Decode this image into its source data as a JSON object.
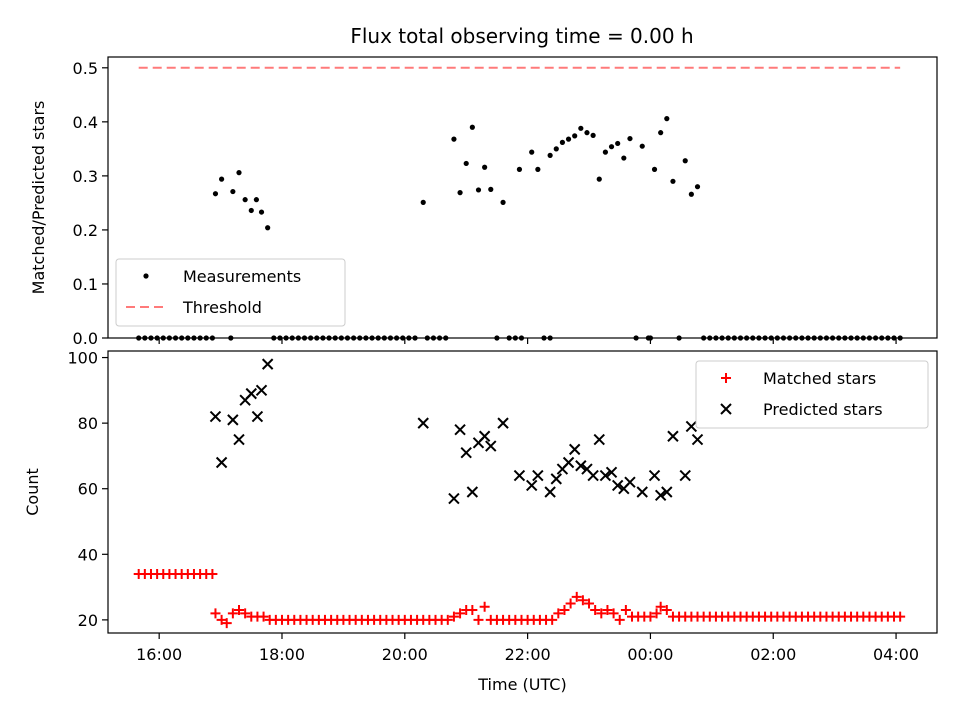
{
  "chart_data": [
    {
      "type": "scatter",
      "title": "Flux total observing time = 0.00 h",
      "ylabel": "Matched/Predicted stars",
      "xlabel": "",
      "xlim": [
        "15:10",
        "04:40"
      ],
      "ylim": [
        0,
        0.52
      ],
      "x_tick_labels": [],
      "y_ticks": [
        0.0,
        0.1,
        0.2,
        0.3,
        0.4,
        0.5
      ],
      "y_tick_labels": [
        "0.0",
        "0.1",
        "0.2",
        "0.3",
        "0.4",
        "0.5"
      ],
      "legend": "lower-left",
      "grid": false,
      "series": [
        {
          "name": "Measurements",
          "marker": "dot",
          "color": "#000000",
          "points": [
            [
              "16:55",
              0.267
            ],
            [
              "17:01",
              0.294
            ],
            [
              "17:12",
              0.271
            ],
            [
              "17:18",
              0.306
            ],
            [
              "17:24",
              0.256
            ],
            [
              "17:30",
              0.236
            ],
            [
              "17:35",
              0.256
            ],
            [
              "17:40",
              0.233
            ],
            [
              "17:46",
              0.204
            ],
            [
              "20:18",
              0.251
            ],
            [
              "20:48",
              0.368
            ],
            [
              "20:54",
              0.269
            ],
            [
              "21:00",
              0.323
            ],
            [
              "21:06",
              0.39
            ],
            [
              "21:12",
              0.274
            ],
            [
              "21:18",
              0.316
            ],
            [
              "21:24",
              0.275
            ],
            [
              "21:36",
              0.251
            ],
            [
              "21:52",
              0.312
            ],
            [
              "22:04",
              0.344
            ],
            [
              "22:10",
              0.312
            ],
            [
              "22:22",
              0.338
            ],
            [
              "22:28",
              0.35
            ],
            [
              "22:34",
              0.362
            ],
            [
              "22:40",
              0.368
            ],
            [
              "22:46",
              0.374
            ],
            [
              "22:52",
              0.388
            ],
            [
              "22:58",
              0.38
            ],
            [
              "23:04",
              0.375
            ],
            [
              "23:10",
              0.294
            ],
            [
              "23:16",
              0.344
            ],
            [
              "23:22",
              0.354
            ],
            [
              "23:28",
              0.36
            ],
            [
              "23:34",
              0.333
            ],
            [
              "23:40",
              0.369
            ],
            [
              "23:52",
              0.355
            ],
            [
              "00:04",
              0.312
            ],
            [
              "00:10",
              0.38
            ],
            [
              "00:16",
              0.406
            ],
            [
              "00:22",
              0.29
            ],
            [
              "00:34",
              0.328
            ],
            [
              "00:40",
              0.266
            ],
            [
              "00:46",
              0.28
            ]
          ],
          "zero_points": [
            "15:40",
            "15:46",
            "15:52",
            "15:58",
            "16:04",
            "16:10",
            "16:16",
            "16:22",
            "16:28",
            "16:34",
            "16:40",
            "16:46",
            "16:52",
            "17:10",
            "17:52",
            "17:58",
            "18:04",
            "18:10",
            "18:16",
            "18:22",
            "18:28",
            "18:34",
            "18:40",
            "18:46",
            "18:52",
            "18:58",
            "19:04",
            "19:10",
            "19:16",
            "19:22",
            "19:28",
            "19:34",
            "19:40",
            "19:46",
            "19:52",
            "19:58",
            "20:04",
            "20:10",
            "20:22",
            "20:28",
            "20:34",
            "20:40",
            "21:30",
            "21:42",
            "21:48",
            "21:54",
            "22:16",
            "22:22",
            "23:46",
            "23:58",
            "00:00",
            "00:28",
            "00:52",
            "00:58",
            "01:04",
            "01:10",
            "01:16",
            "01:22",
            "01:28",
            "01:34",
            "01:40",
            "01:46",
            "01:52",
            "01:58",
            "02:04",
            "02:10",
            "02:16",
            "02:22",
            "02:28",
            "02:34",
            "02:40",
            "02:46",
            "02:52",
            "02:58",
            "03:04",
            "03:10",
            "03:16",
            "03:22",
            "03:28",
            "03:34",
            "03:40",
            "03:46",
            "03:52",
            "03:58",
            "04:04"
          ]
        },
        {
          "name": "Threshold",
          "line_style": "dashed",
          "color": "#ff7a7a",
          "points": [
            [
              "15:40",
              0.5
            ],
            [
              "04:04",
              0.5
            ]
          ]
        }
      ]
    },
    {
      "type": "scatter",
      "title": "",
      "ylabel": "Count",
      "xlabel": "Time (UTC)",
      "xlim": [
        "15:10",
        "04:40"
      ],
      "ylim": [
        16,
        102
      ],
      "x_tick_labels": [
        "16:00",
        "18:00",
        "20:00",
        "22:00",
        "00:00",
        "02:00",
        "04:00"
      ],
      "y_ticks": [
        20,
        40,
        60,
        80,
        100
      ],
      "y_tick_labels": [
        "20",
        "40",
        "60",
        "80",
        "100"
      ],
      "legend": "top-right",
      "grid": false,
      "series": [
        {
          "name": "Matched stars",
          "marker": "plus",
          "color": "#ff0000",
          "points": [
            [
              "15:40",
              34
            ],
            [
              "15:46",
              34
            ],
            [
              "15:52",
              34
            ],
            [
              "15:58",
              34
            ],
            [
              "16:04",
              34
            ],
            [
              "16:10",
              34
            ],
            [
              "16:16",
              34
            ],
            [
              "16:22",
              34
            ],
            [
              "16:28",
              34
            ],
            [
              "16:34",
              34
            ],
            [
              "16:40",
              34
            ],
            [
              "16:46",
              34
            ],
            [
              "16:52",
              34
            ],
            [
              "16:55",
              22
            ],
            [
              "17:01",
              20
            ],
            [
              "17:06",
              19
            ],
            [
              "17:12",
              22
            ],
            [
              "17:18",
              23
            ],
            [
              "17:24",
              22
            ],
            [
              "17:30",
              21
            ],
            [
              "17:36",
              21
            ],
            [
              "17:42",
              21
            ],
            [
              "17:48",
              20
            ],
            [
              "17:54",
              20
            ],
            [
              "18:00",
              20
            ],
            [
              "18:06",
              20
            ],
            [
              "18:12",
              20
            ],
            [
              "18:18",
              20
            ],
            [
              "18:24",
              20
            ],
            [
              "18:30",
              20
            ],
            [
              "18:36",
              20
            ],
            [
              "18:42",
              20
            ],
            [
              "18:48",
              20
            ],
            [
              "18:54",
              20
            ],
            [
              "19:00",
              20
            ],
            [
              "19:06",
              20
            ],
            [
              "19:12",
              20
            ],
            [
              "19:18",
              20
            ],
            [
              "19:24",
              20
            ],
            [
              "19:30",
              20
            ],
            [
              "19:36",
              20
            ],
            [
              "19:42",
              20
            ],
            [
              "19:48",
              20
            ],
            [
              "19:54",
              20
            ],
            [
              "20:00",
              20
            ],
            [
              "20:06",
              20
            ],
            [
              "20:12",
              20
            ],
            [
              "20:18",
              20
            ],
            [
              "20:24",
              20
            ],
            [
              "20:30",
              20
            ],
            [
              "20:36",
              20
            ],
            [
              "20:42",
              20
            ],
            [
              "20:48",
              21
            ],
            [
              "20:54",
              22
            ],
            [
              "21:00",
              23
            ],
            [
              "21:06",
              23
            ],
            [
              "21:12",
              20
            ],
            [
              "21:18",
              24
            ],
            [
              "21:24",
              20
            ],
            [
              "21:30",
              20
            ],
            [
              "21:36",
              20
            ],
            [
              "21:42",
              20
            ],
            [
              "21:48",
              20
            ],
            [
              "21:54",
              20
            ],
            [
              "22:00",
              20
            ],
            [
              "22:06",
              20
            ],
            [
              "22:12",
              20
            ],
            [
              "22:18",
              20
            ],
            [
              "22:24",
              20
            ],
            [
              "22:30",
              22
            ],
            [
              "22:36",
              23
            ],
            [
              "22:42",
              25
            ],
            [
              "22:48",
              27
            ],
            [
              "22:54",
              26
            ],
            [
              "23:00",
              25
            ],
            [
              "23:06",
              23
            ],
            [
              "23:12",
              22
            ],
            [
              "23:18",
              23
            ],
            [
              "23:24",
              22
            ],
            [
              "23:30",
              20
            ],
            [
              "23:36",
              23
            ],
            [
              "23:42",
              21
            ],
            [
              "23:48",
              21
            ],
            [
              "23:54",
              21
            ],
            [
              "00:00",
              21
            ],
            [
              "00:06",
              22
            ],
            [
              "00:10",
              24
            ],
            [
              "00:16",
              23
            ],
            [
              "00:22",
              21
            ],
            [
              "00:28",
              21
            ],
            [
              "00:34",
              21
            ],
            [
              "00:40",
              21
            ],
            [
              "00:46",
              21
            ],
            [
              "00:52",
              21
            ],
            [
              "00:58",
              21
            ],
            [
              "01:04",
              21
            ],
            [
              "01:10",
              21
            ],
            [
              "01:16",
              21
            ],
            [
              "01:22",
              21
            ],
            [
              "01:28",
              21
            ],
            [
              "01:34",
              21
            ],
            [
              "01:40",
              21
            ],
            [
              "01:46",
              21
            ],
            [
              "01:52",
              21
            ],
            [
              "01:58",
              21
            ],
            [
              "02:04",
              21
            ],
            [
              "02:10",
              21
            ],
            [
              "02:16",
              21
            ],
            [
              "02:22",
              21
            ],
            [
              "02:28",
              21
            ],
            [
              "02:34",
              21
            ],
            [
              "02:40",
              21
            ],
            [
              "02:46",
              21
            ],
            [
              "02:52",
              21
            ],
            [
              "02:58",
              21
            ],
            [
              "03:04",
              21
            ],
            [
              "03:10",
              21
            ],
            [
              "03:16",
              21
            ],
            [
              "03:22",
              21
            ],
            [
              "03:28",
              21
            ],
            [
              "03:34",
              21
            ],
            [
              "03:40",
              21
            ],
            [
              "03:46",
              21
            ],
            [
              "03:52",
              21
            ],
            [
              "03:58",
              21
            ],
            [
              "04:04",
              21
            ]
          ]
        },
        {
          "name": "Predicted stars",
          "marker": "x",
          "color": "#000000",
          "points": [
            [
              "16:55",
              82
            ],
            [
              "17:01",
              68
            ],
            [
              "17:12",
              81
            ],
            [
              "17:18",
              75
            ],
            [
              "17:24",
              87
            ],
            [
              "17:30",
              89
            ],
            [
              "17:36",
              82
            ],
            [
              "17:40",
              90
            ],
            [
              "17:46",
              98
            ],
            [
              "20:18",
              80
            ],
            [
              "20:48",
              57
            ],
            [
              "20:54",
              78
            ],
            [
              "21:00",
              71
            ],
            [
              "21:06",
              59
            ],
            [
              "21:12",
              74
            ],
            [
              "21:18",
              76
            ],
            [
              "21:24",
              73
            ],
            [
              "21:36",
              80
            ],
            [
              "21:52",
              64
            ],
            [
              "22:04",
              61
            ],
            [
              "22:10",
              64
            ],
            [
              "22:22",
              59
            ],
            [
              "22:28",
              63
            ],
            [
              "22:34",
              66
            ],
            [
              "22:40",
              68
            ],
            [
              "22:46",
              72
            ],
            [
              "22:52",
              67
            ],
            [
              "22:58",
              66
            ],
            [
              "23:04",
              64
            ],
            [
              "23:10",
              75
            ],
            [
              "23:16",
              64
            ],
            [
              "23:22",
              65
            ],
            [
              "23:28",
              61
            ],
            [
              "23:34",
              60
            ],
            [
              "23:40",
              62
            ],
            [
              "23:52",
              59
            ],
            [
              "00:04",
              64
            ],
            [
              "00:10",
              58
            ],
            [
              "00:16",
              59
            ],
            [
              "00:22",
              76
            ],
            [
              "00:34",
              64
            ],
            [
              "00:40",
              79
            ],
            [
              "00:46",
              75
            ]
          ]
        }
      ]
    }
  ]
}
